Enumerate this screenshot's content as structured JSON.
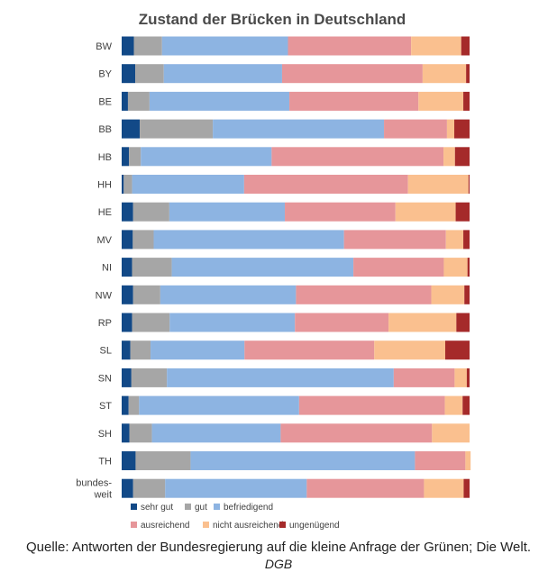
{
  "chart_data": {
    "type": "bar",
    "orientation": "horizontal",
    "stacked": "percent",
    "title": "Zustand der Brücken in Deutschland",
    "categories": [
      "BW",
      "BY",
      "BE",
      "BB",
      "HB",
      "HH",
      "HE",
      "MV",
      "NI",
      "NW",
      "RP",
      "SL",
      "SN",
      "ST",
      "SH",
      "TH",
      "bundes-\nweit"
    ],
    "series": [
      {
        "name": "sehr gut",
        "color": "#124987",
        "values": [
          3.5,
          3.9,
          1.8,
          5.2,
          2.1,
          0.6,
          3.3,
          3.2,
          3.0,
          3.3,
          3.0,
          2.5,
          2.8,
          2.0,
          2.2,
          4.0,
          3.3
        ]
      },
      {
        "name": "gut",
        "color": "#a6a6a6",
        "values": [
          8.1,
          8.2,
          6.2,
          21.0,
          3.4,
          2.4,
          10.4,
          6.0,
          11.4,
          7.8,
          10.8,
          5.8,
          10.2,
          3.0,
          6.5,
          15.8,
          9.2
        ]
      },
      {
        "name": "befriedigend",
        "color": "#8db4e2",
        "values": [
          36.2,
          34.0,
          40.2,
          49.2,
          37.6,
          32.2,
          33.2,
          54.7,
          52.2,
          39.0,
          36.0,
          27.0,
          65.2,
          46.0,
          37.0,
          64.5,
          40.7
        ]
      },
      {
        "name": "ausreichend",
        "color": "#e6969a",
        "values": [
          35.4,
          40.4,
          37.1,
          18.1,
          49.4,
          47.1,
          31.8,
          29.3,
          26.0,
          38.9,
          26.9,
          37.3,
          17.5,
          41.9,
          43.5,
          14.5,
          33.7
        ]
      },
      {
        "name": "nicht ausreichend",
        "color": "#fac08f",
        "values": [
          14.4,
          12.5,
          12.9,
          2.1,
          3.3,
          17.4,
          17.3,
          5.0,
          6.8,
          9.5,
          19.5,
          20.4,
          3.5,
          5.1,
          10.8,
          1.5,
          11.4
        ]
      },
      {
        "name": "ungenügend",
        "color": "#a52a2a",
        "values": [
          2.4,
          1.0,
          1.8,
          4.4,
          4.2,
          0.3,
          4.0,
          1.8,
          0.6,
          1.5,
          3.8,
          7.0,
          0.8,
          2.0,
          0.0,
          0.0,
          1.7
        ]
      }
    ],
    "xlim": [
      0,
      100
    ],
    "grid": false,
    "legend_position": "bottom-left"
  },
  "footer": {
    "source": "Quelle: Antworten der Bundesregierung auf die kleine Anfrage der Grünen; Die Welt.",
    "credit": "DGB"
  }
}
